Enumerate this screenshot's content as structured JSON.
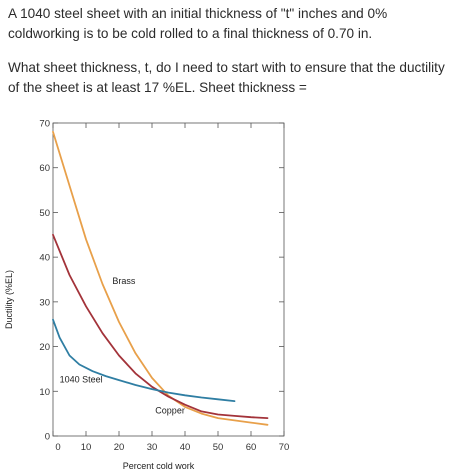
{
  "question": {
    "paragraph1": "A 1040 steel sheet with an initial thickness of \"t\" inches and 0% coldworking is to be cold rolled to a final thickness of 0.70 in.",
    "paragraph2": "What sheet thickness, t, do I need to start with to ensure that the ductility of the sheet is at least 17 %EL. Sheet thickness ="
  },
  "chart_data": {
    "type": "line",
    "xlabel": "Percent cold work",
    "ylabel": "Ductility (%EL)",
    "xlim": [
      0,
      70
    ],
    "ylim": [
      0,
      70
    ],
    "xticks": [
      "0",
      "10",
      "20",
      "30",
      "40",
      "50",
      "60",
      "70"
    ],
    "yticks": [
      "0",
      "10",
      "20",
      "30",
      "40",
      "50",
      "60",
      "70"
    ],
    "grid": true,
    "series": [
      {
        "name": "Brass",
        "color": "#e8a04a",
        "x": [
          0,
          5,
          10,
          15,
          20,
          25,
          30,
          35,
          40,
          45,
          50,
          55,
          60,
          65
        ],
        "y": [
          68,
          56,
          44,
          34,
          25.5,
          18.5,
          13,
          9,
          6.5,
          5,
          4,
          3.5,
          3,
          2.5
        ]
      },
      {
        "name": "Copper",
        "color": "#a3333a",
        "x": [
          0,
          5,
          10,
          15,
          20,
          25,
          30,
          35,
          40,
          45,
          50,
          55,
          60,
          65
        ],
        "y": [
          45,
          36,
          29,
          23,
          18,
          14,
          11,
          8.8,
          7,
          5.5,
          4.8,
          4.5,
          4.2,
          4
        ]
      },
      {
        "name": "1040 Steel",
        "color": "#2f7ea3",
        "x": [
          0,
          2,
          5,
          8,
          12,
          16,
          20,
          25,
          30,
          35,
          40,
          45,
          50,
          55
        ],
        "y": [
          26,
          22,
          18,
          16,
          14.5,
          13.4,
          12.5,
          11.4,
          10.5,
          9.7,
          9.1,
          8.6,
          8.2,
          7.8
        ]
      }
    ],
    "labels": [
      {
        "text": "Brass",
        "x": 18,
        "y": 34
      },
      {
        "text": "1040 Steel",
        "x": 2,
        "y": 12
      },
      {
        "text": "Copper",
        "x": 31,
        "y": 5
      }
    ]
  }
}
